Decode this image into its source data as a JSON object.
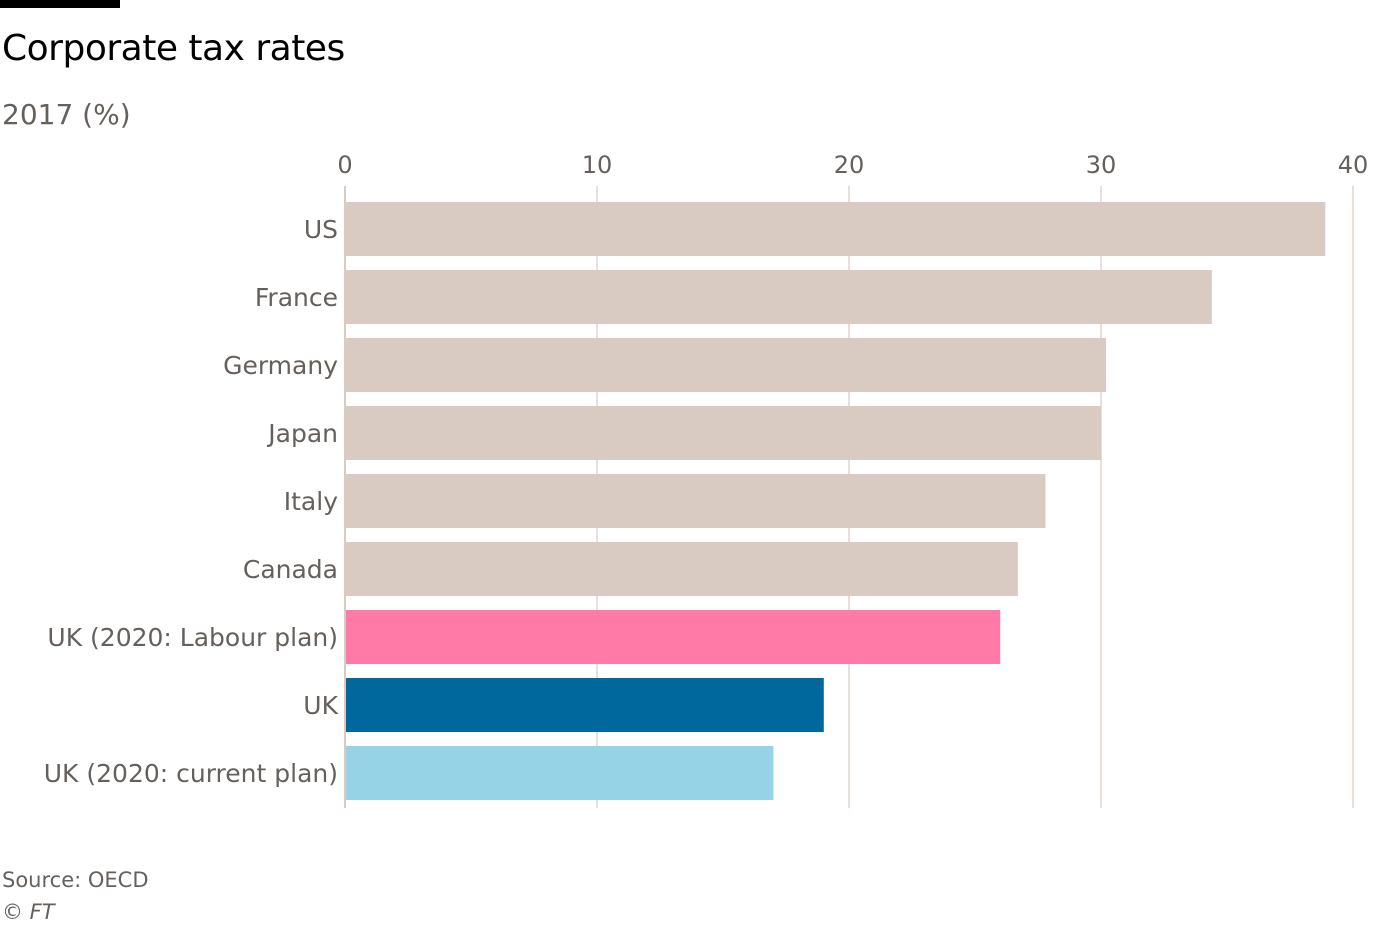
{
  "title": "Corporate tax rates",
  "subtitle": "2017 (%)",
  "source": "Source: OECD",
  "copyright": "© FT",
  "chart_data": {
    "type": "bar",
    "orientation": "horizontal",
    "title": "Corporate tax rates",
    "subtitle": "2017 (%)",
    "xlabel": "",
    "ylabel": "",
    "xlim": [
      0,
      40
    ],
    "xticks": [
      0,
      10,
      20,
      30,
      40
    ],
    "grid": true,
    "categories": [
      "US",
      "France",
      "Germany",
      "Japan",
      "Italy",
      "Canada",
      "UK (2020: Labour plan)",
      "UK",
      "UK (2020: current plan)"
    ],
    "values": [
      38.9,
      34.4,
      30.2,
      30.0,
      27.8,
      26.7,
      26.0,
      19.0,
      17.0
    ],
    "colors": [
      "#d9cbc1",
      "#d9cbc1",
      "#d9cbc1",
      "#d9cbc1",
      "#d9cbc1",
      "#d9cbc1",
      "#ff7aa6",
      "#00689c",
      "#96d3e6"
    ]
  }
}
